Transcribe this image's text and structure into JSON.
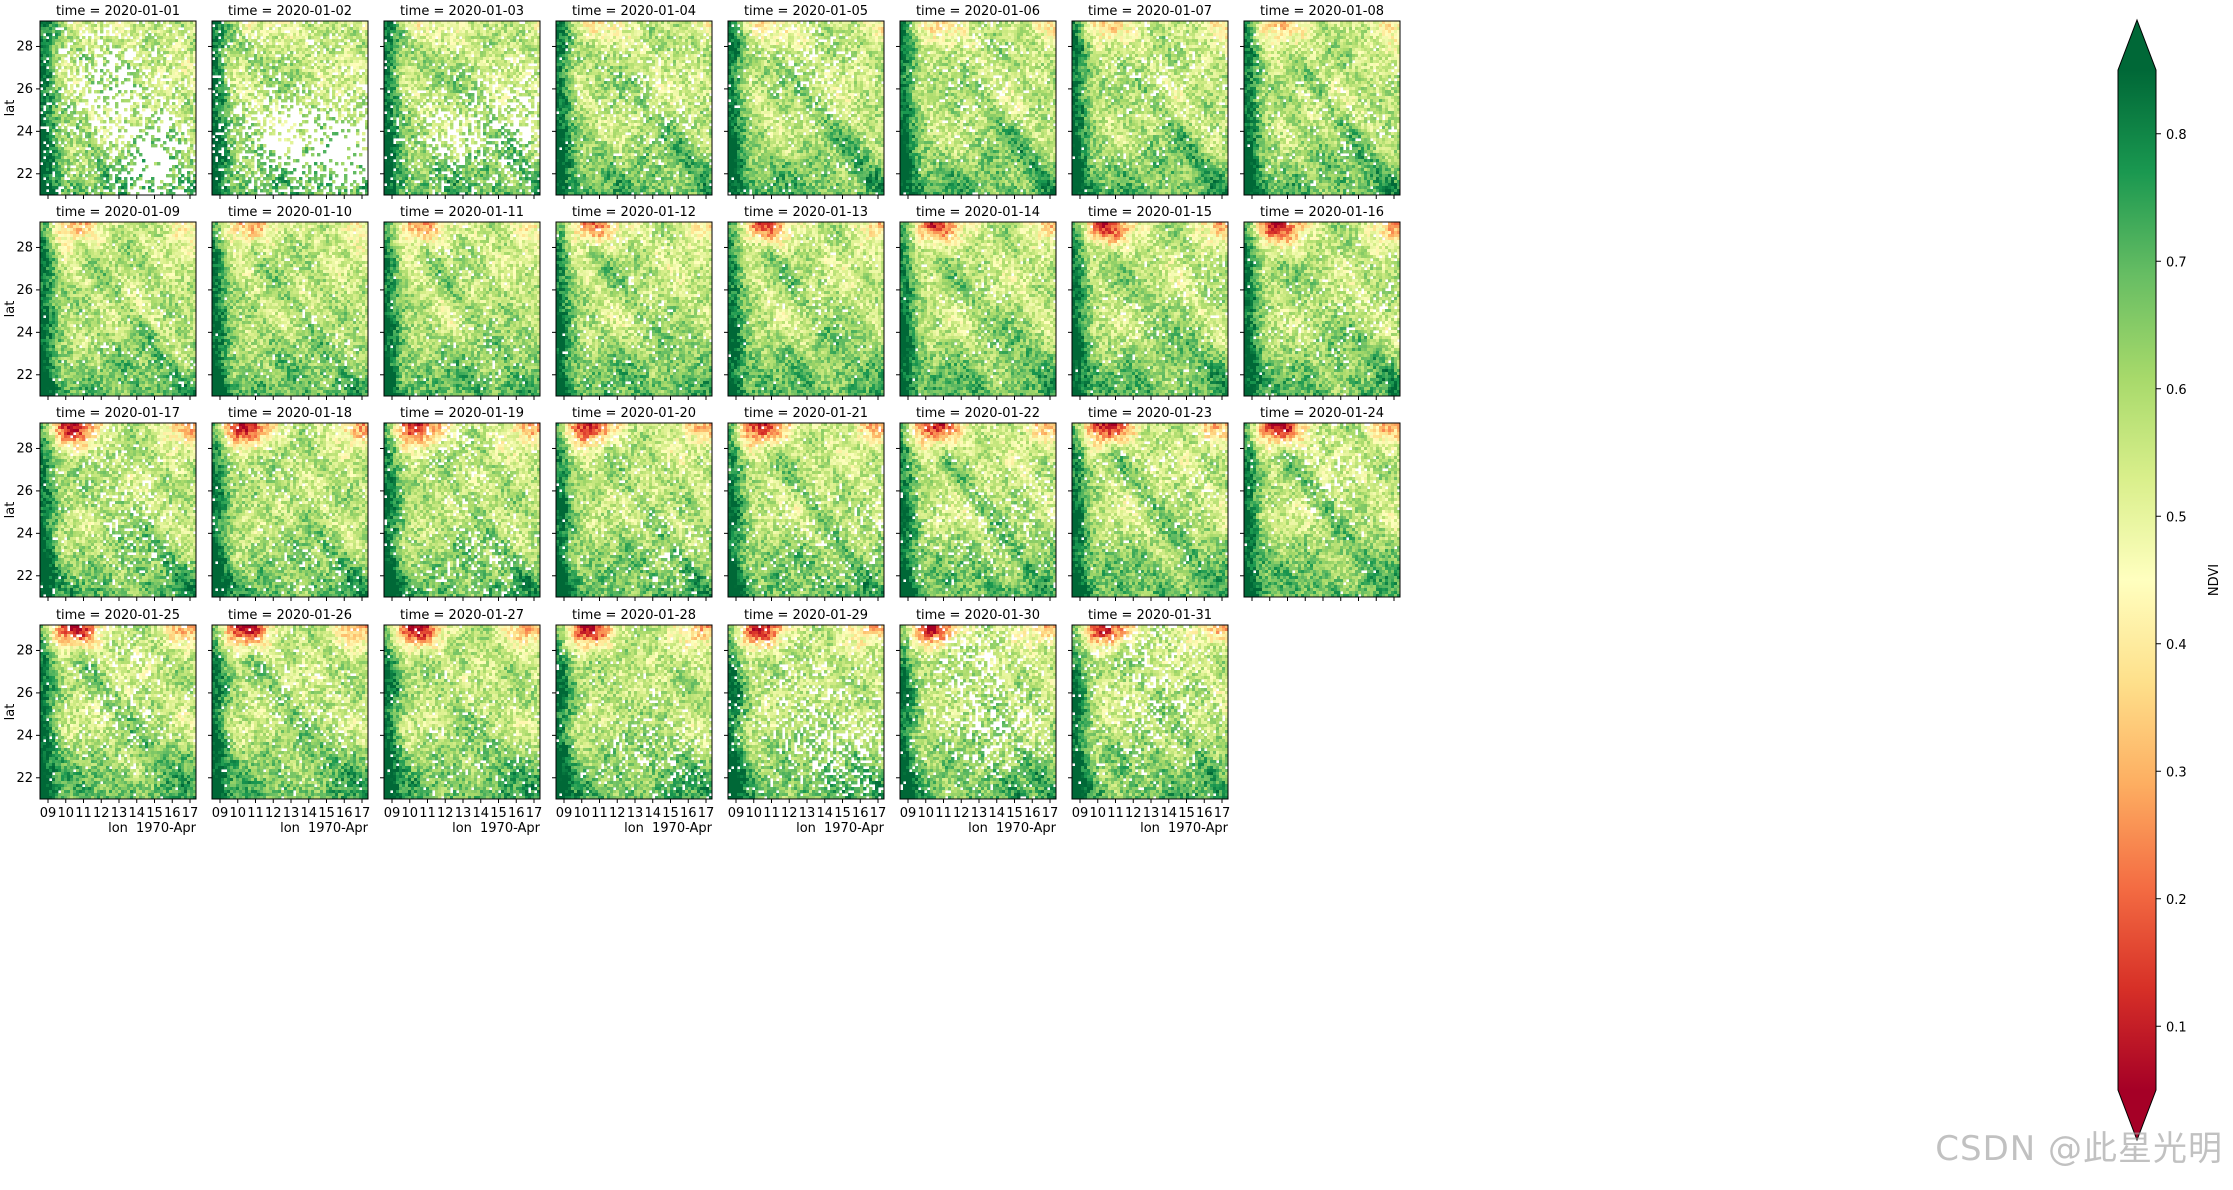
{
  "chart_data": {
    "type": "heatmap",
    "description_facet_label_prefix": "time = ",
    "panel_titles": [
      "time = 2020-01-01",
      "time = 2020-01-02",
      "time = 2020-01-03",
      "time = 2020-01-04",
      "time = 2020-01-05",
      "time = 2020-01-06",
      "time = 2020-01-07",
      "time = 2020-01-08",
      "time = 2020-01-09",
      "time = 2020-01-10",
      "time = 2020-01-11",
      "time = 2020-01-12",
      "time = 2020-01-13",
      "time = 2020-01-14",
      "time = 2020-01-15",
      "time = 2020-01-16",
      "time = 2020-01-17",
      "time = 2020-01-18",
      "time = 2020-01-19",
      "time = 2020-01-20",
      "time = 2020-01-21",
      "time = 2020-01-22",
      "time = 2020-01-23",
      "time = 2020-01-24",
      "time = 2020-01-25",
      "time = 2020-01-26",
      "time = 2020-01-27",
      "time = 2020-01-28",
      "time = 2020-01-29",
      "time = 2020-01-30",
      "time = 2020-01-31"
    ],
    "grid": {
      "columns": 8,
      "rows": 4
    },
    "missing_fraction": [
      0.45,
      0.5,
      0.3,
      0.1,
      0.1,
      0.08,
      0.08,
      0.06,
      0.06,
      0.05,
      0.05,
      0.06,
      0.04,
      0.04,
      0.06,
      0.07,
      0.1,
      0.08,
      0.14,
      0.08,
      0.1,
      0.1,
      0.07,
      0.07,
      0.12,
      0.08,
      0.08,
      0.12,
      0.22,
      0.22,
      0.18
    ],
    "ylabel": "lat",
    "xlabel": "lon",
    "y_ticks": [
      "22",
      "24",
      "26",
      "28"
    ],
    "y_tick_values": [
      22,
      24,
      26,
      28
    ],
    "ylim": [
      21,
      29.2
    ],
    "x_ticks": [
      "09",
      "10",
      "11",
      "12",
      "13",
      "14",
      "15",
      "16",
      "17"
    ],
    "x_offset_label": "1970-Apr",
    "colorbar": {
      "label": "NDVI",
      "colormap": "RdYlGn",
      "range": [
        0.05,
        0.85
      ],
      "ticks": [
        "0.1",
        "0.2",
        "0.3",
        "0.4",
        "0.5",
        "0.6",
        "0.7",
        "0.8"
      ],
      "tick_values": [
        0.1,
        0.2,
        0.3,
        0.4,
        0.5,
        0.6,
        0.7,
        0.8
      ],
      "extend": "both",
      "colors": [
        "#a50026",
        "#d73027",
        "#f46d43",
        "#fdae61",
        "#fee08b",
        "#ffffbf",
        "#d9ef8b",
        "#a6d96a",
        "#66bd63",
        "#1a9850",
        "#006837"
      ]
    }
  },
  "watermark": "CSDN @此星光明"
}
